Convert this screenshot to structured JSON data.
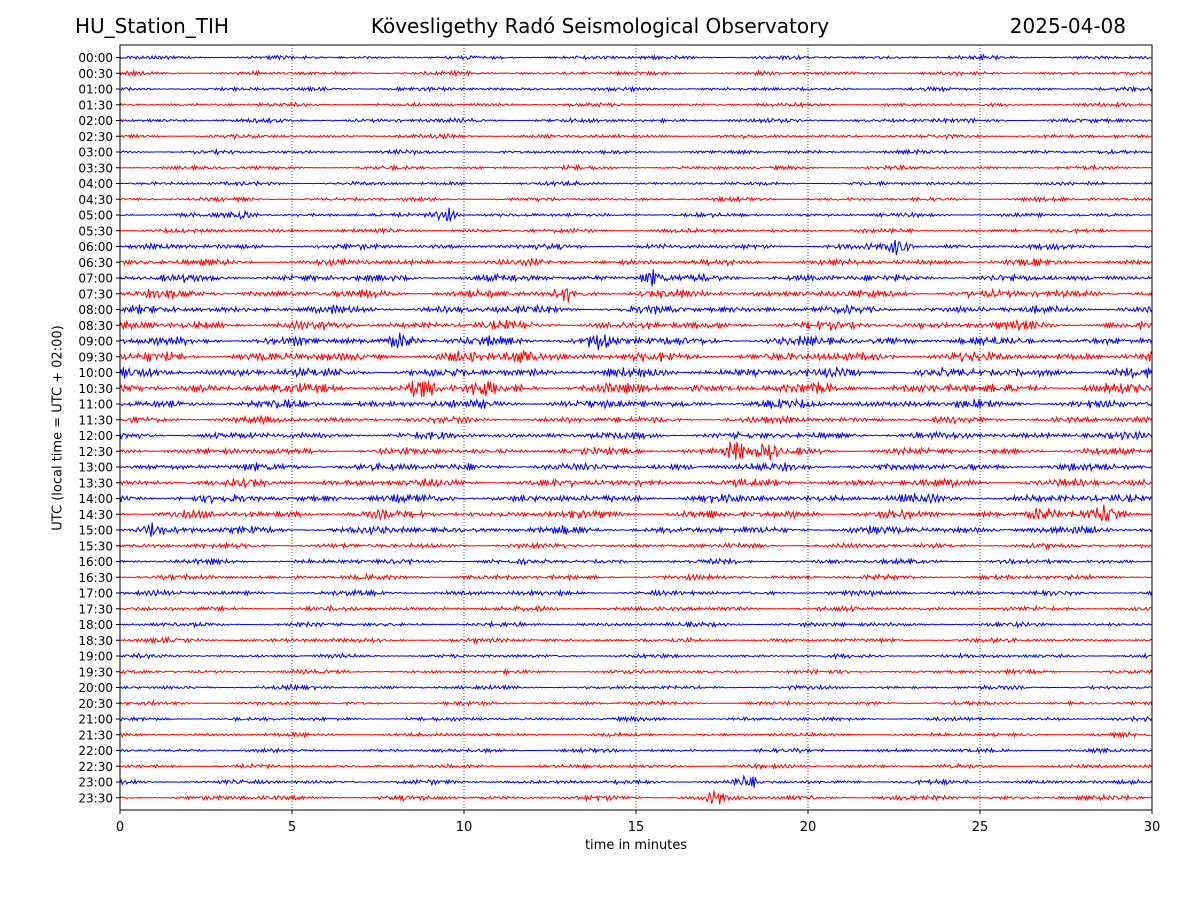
{
  "header": {
    "station": "HU_Station_TIH",
    "observatory": "Kövesligethy Radó Seismological Observatory",
    "date": "2025-04-08"
  },
  "chart_data": {
    "type": "line",
    "title": "Kövesligethy Radó Seismological Observatory",
    "xlabel": "time in minutes",
    "ylabel": "UTC (local time = UTC + 02:00)",
    "xlim": [
      0,
      30
    ],
    "xticks": [
      0,
      5,
      10,
      15,
      20,
      25,
      30
    ],
    "grid": "vertical dotted lines at each x tick",
    "colors": [
      "#0000ee",
      "#ff0000"
    ],
    "row_labels": [
      "00:00",
      "00:30",
      "01:00",
      "01:30",
      "02:00",
      "02:30",
      "03:00",
      "03:30",
      "04:00",
      "04:30",
      "05:00",
      "05:30",
      "06:00",
      "06:30",
      "07:00",
      "07:30",
      "08:00",
      "08:30",
      "09:00",
      "09:30",
      "10:00",
      "10:30",
      "11:00",
      "11:30",
      "12:00",
      "12:30",
      "13:00",
      "13:30",
      "14:00",
      "14:30",
      "15:00",
      "15:30",
      "16:00",
      "16:30",
      "17:00",
      "17:30",
      "18:00",
      "18:30",
      "19:00",
      "19:30",
      "20:00",
      "20:30",
      "21:00",
      "21:30",
      "22:00",
      "22:30",
      "23:00",
      "23:30"
    ],
    "noise_level": [
      0.35,
      0.35,
      0.35,
      0.35,
      0.4,
      0.35,
      0.35,
      0.35,
      0.35,
      0.35,
      0.35,
      0.4,
      0.5,
      0.55,
      0.65,
      0.75,
      0.7,
      0.75,
      0.8,
      0.85,
      0.85,
      0.9,
      0.75,
      0.6,
      0.65,
      0.6,
      0.7,
      0.7,
      0.75,
      0.75,
      0.7,
      0.45,
      0.45,
      0.45,
      0.45,
      0.45,
      0.4,
      0.4,
      0.35,
      0.35,
      0.35,
      0.35,
      0.35,
      0.35,
      0.35,
      0.35,
      0.4,
      0.45
    ],
    "events": [
      {
        "row": "05:00",
        "minute": 9.4,
        "amplitude": 1.6
      },
      {
        "row": "05:00",
        "minute": 3.6,
        "amplitude": 0.8
      },
      {
        "row": "06:00",
        "minute": 22.6,
        "amplitude": 1.4
      },
      {
        "row": "07:00",
        "minute": 15.5,
        "amplitude": 1.3
      },
      {
        "row": "07:30",
        "minute": 13.0,
        "amplitude": 1.0
      },
      {
        "row": "09:00",
        "minute": 8.2,
        "amplitude": 1.3
      },
      {
        "row": "09:00",
        "minute": 14.0,
        "amplitude": 1.6
      },
      {
        "row": "09:30",
        "minute": 11.7,
        "amplitude": 1.6
      },
      {
        "row": "10:30",
        "minute": 8.8,
        "amplitude": 1.4
      },
      {
        "row": "10:30",
        "minute": 10.5,
        "amplitude": 1.3
      },
      {
        "row": "12:30",
        "minute": 17.9,
        "amplitude": 1.6
      },
      {
        "row": "12:30",
        "minute": 18.8,
        "amplitude": 1.3
      },
      {
        "row": "14:30",
        "minute": 26.8,
        "amplitude": 1.2
      },
      {
        "row": "14:30",
        "minute": 28.7,
        "amplitude": 1.4
      },
      {
        "row": "15:00",
        "minute": 0.9,
        "amplitude": 1.0
      },
      {
        "row": "23:00",
        "minute": 18.2,
        "amplitude": 0.9
      },
      {
        "row": "23:30",
        "minute": 17.3,
        "amplitude": 1.0
      }
    ]
  }
}
